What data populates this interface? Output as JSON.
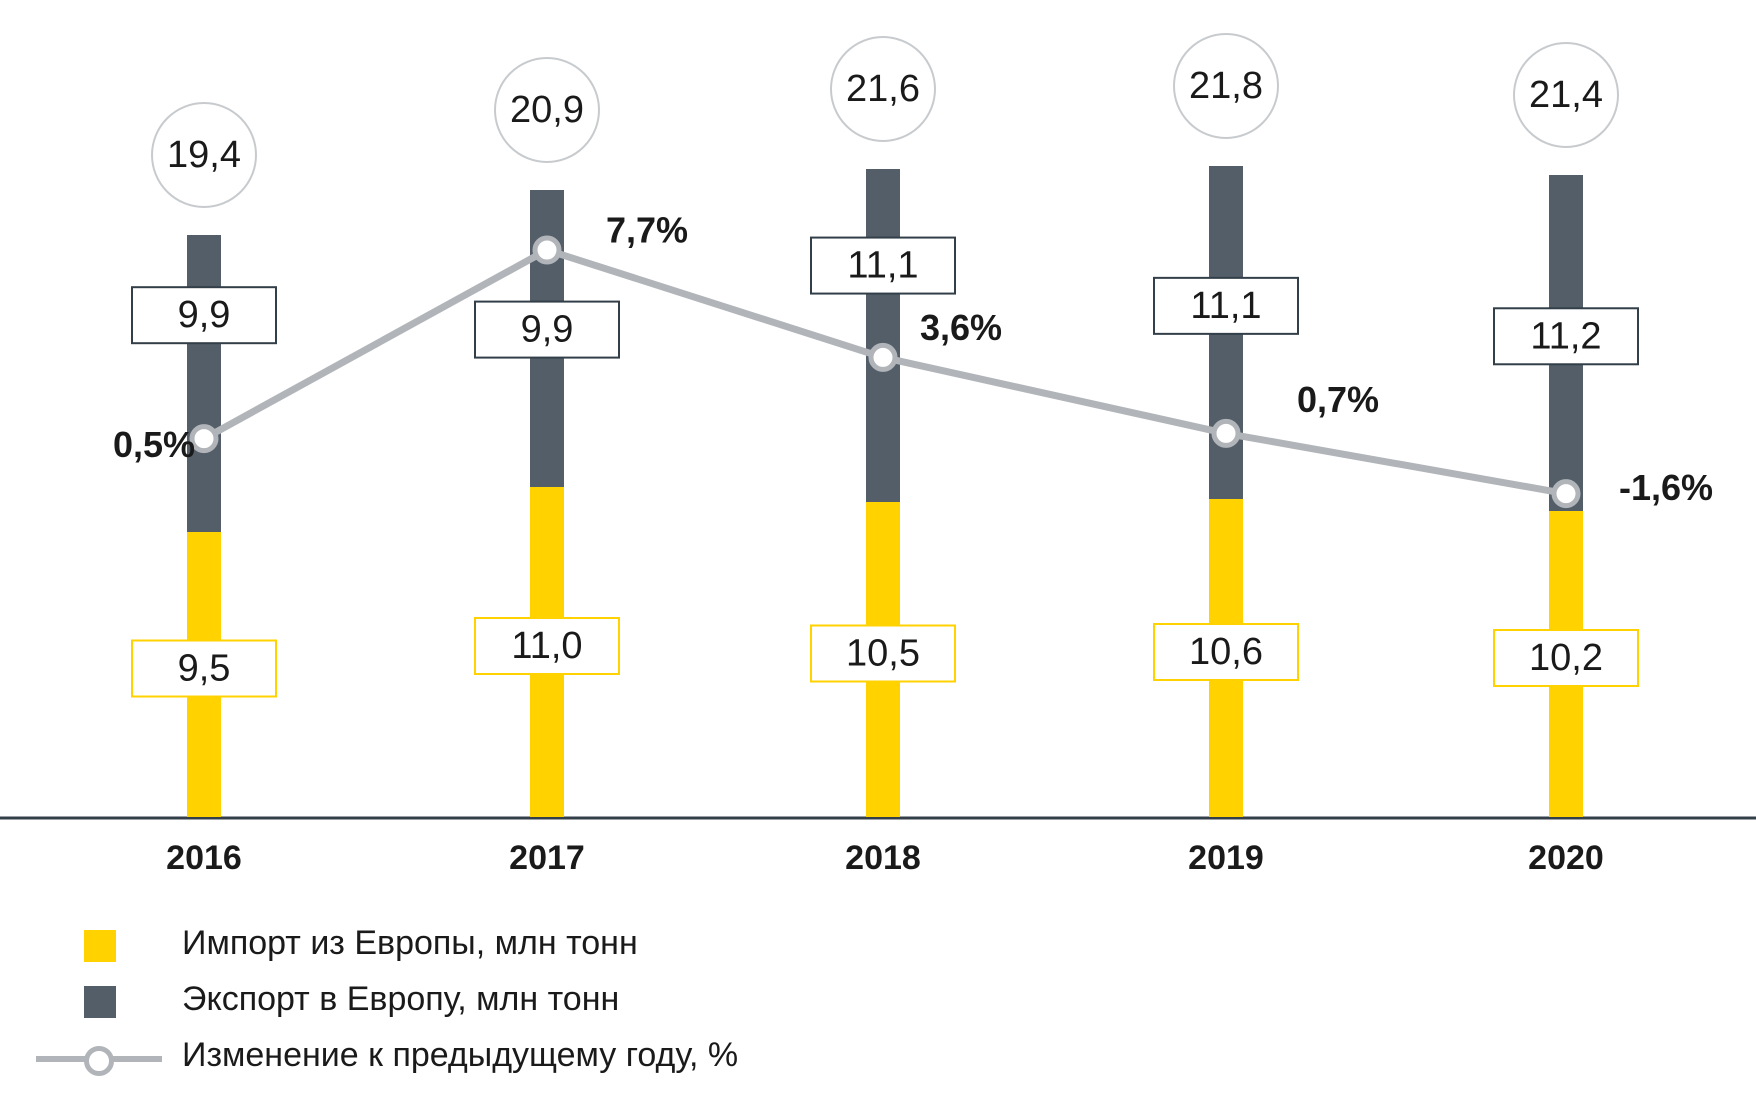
{
  "chart_data": {
    "type": "bar",
    "stacked": true,
    "categories": [
      "2016",
      "2017",
      "2018",
      "2019",
      "2020"
    ],
    "series": [
      {
        "name": "Импорт из Европы, млн тонн",
        "color": "#ffd200",
        "values": [
          9.5,
          11.0,
          10.5,
          10.6,
          10.2
        ],
        "labels": [
          "9,5",
          "11,0",
          "10,5",
          "10,6",
          "10,2"
        ]
      },
      {
        "name": "Экспорт в Европу, млн тонн",
        "color": "#535e69",
        "values": [
          9.9,
          9.9,
          11.1,
          11.1,
          11.2
        ],
        "labels": [
          "9,9",
          "9,9",
          "11,1",
          "11,1",
          "11,2"
        ]
      }
    ],
    "totals": {
      "values": [
        19.4,
        20.9,
        21.6,
        21.8,
        21.4
      ],
      "labels": [
        "19,4",
        "20,9",
        "21,6",
        "21,8",
        "21,4"
      ]
    },
    "line": {
      "name": "Изменение к предыдущему году, %",
      "color": "#b1b5b9",
      "values": [
        0.5,
        7.7,
        3.6,
        0.7,
        -1.6
      ],
      "labels": [
        "0,5%",
        "7,7%",
        "3,6%",
        "0,7%",
        "-1,6%"
      ]
    },
    "legend_position": "bottom-left",
    "grid": false
  }
}
